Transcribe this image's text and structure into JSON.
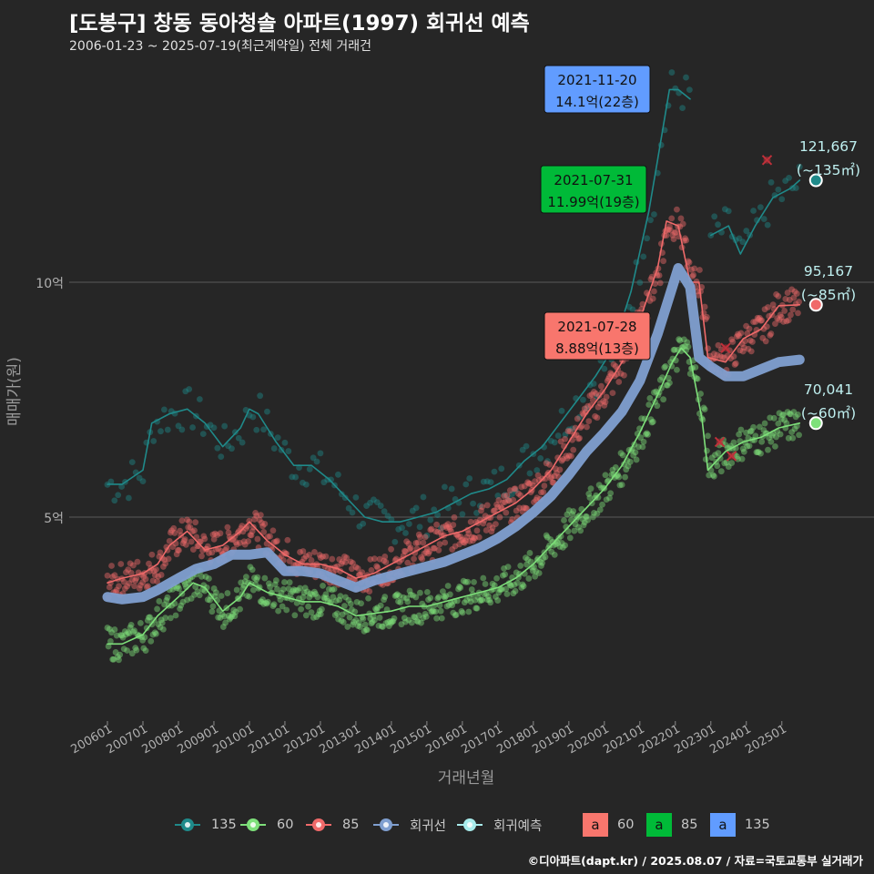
{
  "title": "[도봉구] 창동 동아청솔 아파트(1997) 회귀선 예측",
  "subtitle": "2006-01-23 ~ 2025-07-19(최근계약일) 전체 거래건",
  "caption": "©디아파트(dapt.kr) / 2025.08.07 / 자료=국토교통부 실거래가",
  "colors": {
    "background": "#262626",
    "s135": "#1f8a8a",
    "s60": "#7ee07a",
    "s85": "#f06a6a",
    "regression": "#7f9fd0",
    "forecast": "#a8ecec",
    "label60": "#f8766d",
    "label85": "#00ba38",
    "label135": "#619cff"
  },
  "legend": {
    "items": [
      {
        "label": "135",
        "color": "#1f8a8a"
      },
      {
        "label": "60",
        "color": "#7ee07a"
      },
      {
        "label": "85",
        "color": "#f06a6a"
      },
      {
        "label": "회귀선",
        "color": "#7f9fd0"
      },
      {
        "label": "회귀예측",
        "color": "#a8ecec"
      }
    ],
    "label_items": [
      {
        "glyph": "a",
        "label": "60",
        "color": "#f8766d"
      },
      {
        "glyph": "a",
        "label": "85",
        "color": "#00ba38"
      },
      {
        "glyph": "a",
        "label": "135",
        "color": "#619cff"
      }
    ]
  },
  "chart_data": {
    "type": "line",
    "xlabel": "거래년월",
    "ylabel": "매매가(원)",
    "x_ticks": [
      "200601",
      "200701",
      "200801",
      "200901",
      "201001",
      "201101",
      "201201",
      "201301",
      "201401",
      "201501",
      "201601",
      "201701",
      "201801",
      "201901",
      "202001",
      "202101",
      "202201",
      "202301",
      "202401",
      "202501"
    ],
    "xlim": [
      "2006-01",
      "2025-10"
    ],
    "ylim": [
      1.7,
      14.6
    ],
    "y_ticks": [
      {
        "value": 5,
        "label": "5억"
      },
      {
        "value": 10,
        "label": "10억"
      }
    ],
    "grid": true,
    "legend_position": "bottom",
    "series": [
      {
        "name": "135",
        "color": "#1f8a8a",
        "points": [
          [
            "2006-01",
            5.7
          ],
          [
            "2006-06",
            5.7
          ],
          [
            "2007-01",
            6.0
          ],
          [
            "2007-04",
            7.0
          ],
          [
            "2007-10",
            7.2
          ],
          [
            "2008-04",
            7.3
          ],
          [
            "2008-10",
            7.0
          ],
          [
            "2009-04",
            6.5
          ],
          [
            "2009-10",
            6.9
          ],
          [
            "2010-01",
            7.3
          ],
          [
            "2010-04",
            7.2
          ],
          [
            "2010-10",
            6.6
          ],
          [
            "2011-04",
            6.1
          ],
          [
            "2011-10",
            6.1
          ],
          [
            "2012-04",
            5.8
          ],
          [
            "2012-10",
            5.4
          ],
          [
            "2013-04",
            5.0
          ],
          [
            "2013-10",
            4.9
          ],
          [
            "2014-04",
            4.9
          ],
          [
            "2014-10",
            5.0
          ],
          [
            "2015-04",
            5.1
          ],
          [
            "2015-10",
            5.3
          ],
          [
            "2016-04",
            5.5
          ],
          [
            "2016-10",
            5.6
          ],
          [
            "2017-04",
            5.8
          ],
          [
            "2017-10",
            6.2
          ],
          [
            "2018-04",
            6.5
          ],
          [
            "2018-10",
            7.0
          ],
          [
            "2019-04",
            7.5
          ],
          [
            "2019-10",
            8.0
          ],
          [
            "2020-04",
            8.6
          ],
          [
            "2020-10",
            9.8
          ],
          [
            "2021-04",
            11.5
          ],
          [
            "2021-07",
            12.6
          ],
          [
            "2021-11",
            14.1
          ],
          [
            "2022-02",
            14.1
          ],
          [
            "2022-06",
            13.9
          ]
        ]
      },
      {
        "name": "135-recent",
        "color": "#1f8a8a",
        "points": [
          [
            "2023-01",
            11.0
          ],
          [
            "2023-07",
            11.2
          ],
          [
            "2023-11",
            10.6
          ],
          [
            "2024-04",
            11.2
          ],
          [
            "2024-10",
            11.8
          ],
          [
            "2025-04",
            12.0
          ],
          [
            "2025-07",
            12.17
          ]
        ]
      },
      {
        "name": "85",
        "color": "#f06a6a",
        "points": [
          [
            "2006-01",
            3.6
          ],
          [
            "2006-06",
            3.7
          ],
          [
            "2007-01",
            3.8
          ],
          [
            "2007-06",
            4.0
          ],
          [
            "2007-10",
            4.4
          ],
          [
            "2008-04",
            4.7
          ],
          [
            "2008-10",
            4.3
          ],
          [
            "2009-04",
            4.4
          ],
          [
            "2009-10",
            4.7
          ],
          [
            "2010-01",
            4.9
          ],
          [
            "2010-07",
            4.5
          ],
          [
            "2011-01",
            4.2
          ],
          [
            "2011-07",
            4.0
          ],
          [
            "2012-01",
            4.0
          ],
          [
            "2012-07",
            3.9
          ],
          [
            "2013-01",
            3.7
          ],
          [
            "2013-07",
            3.8
          ],
          [
            "2014-01",
            4.0
          ],
          [
            "2014-07",
            4.2
          ],
          [
            "2015-01",
            4.4
          ],
          [
            "2015-07",
            4.6
          ],
          [
            "2016-01",
            4.7
          ],
          [
            "2016-07",
            4.9
          ],
          [
            "2017-01",
            5.1
          ],
          [
            "2017-07",
            5.3
          ],
          [
            "2018-01",
            5.6
          ],
          [
            "2018-07",
            6.0
          ],
          [
            "2019-01",
            6.6
          ],
          [
            "2019-07",
            7.2
          ],
          [
            "2020-01",
            7.7
          ],
          [
            "2020-07",
            8.3
          ],
          [
            "2021-01",
            9.2
          ],
          [
            "2021-07",
            10.3
          ],
          [
            "2021-10",
            11.3
          ],
          [
            "2022-02",
            11.2
          ],
          [
            "2022-06",
            10.0
          ],
          [
            "2022-09",
            10.0
          ],
          [
            "2022-12",
            8.4
          ],
          [
            "2023-06",
            8.3
          ],
          [
            "2023-12",
            8.8
          ],
          [
            "2024-06",
            9.0
          ],
          [
            "2024-12",
            9.5
          ],
          [
            "2025-07",
            9.52
          ]
        ]
      },
      {
        "name": "60",
        "color": "#7ee07a",
        "points": [
          [
            "2006-01",
            2.3
          ],
          [
            "2006-06",
            2.3
          ],
          [
            "2007-01",
            2.5
          ],
          [
            "2007-06",
            2.9
          ],
          [
            "2008-01",
            3.3
          ],
          [
            "2008-06",
            3.6
          ],
          [
            "2008-10",
            3.5
          ],
          [
            "2009-04",
            3.0
          ],
          [
            "2009-10",
            3.3
          ],
          [
            "2010-01",
            3.6
          ],
          [
            "2010-07",
            3.4
          ],
          [
            "2011-01",
            3.3
          ],
          [
            "2011-07",
            3.2
          ],
          [
            "2012-01",
            3.2
          ],
          [
            "2012-07",
            3.1
          ],
          [
            "2013-01",
            2.9
          ],
          [
            "2013-07",
            2.95
          ],
          [
            "2014-01",
            3.0
          ],
          [
            "2014-07",
            3.1
          ],
          [
            "2015-01",
            3.1
          ],
          [
            "2015-07",
            3.2
          ],
          [
            "2016-01",
            3.3
          ],
          [
            "2016-07",
            3.4
          ],
          [
            "2017-01",
            3.5
          ],
          [
            "2017-07",
            3.7
          ],
          [
            "2018-01",
            4.0
          ],
          [
            "2018-07",
            4.4
          ],
          [
            "2019-01",
            4.8
          ],
          [
            "2019-07",
            5.2
          ],
          [
            "2020-01",
            5.6
          ],
          [
            "2020-07",
            6.1
          ],
          [
            "2021-01",
            6.8
          ],
          [
            "2021-07",
            7.6
          ],
          [
            "2021-12",
            8.3
          ],
          [
            "2022-03",
            8.6
          ],
          [
            "2022-06",
            8.4
          ],
          [
            "2022-10",
            7.1
          ],
          [
            "2022-12",
            6.0
          ],
          [
            "2023-06",
            6.4
          ],
          [
            "2023-12",
            6.6
          ],
          [
            "2024-06",
            6.7
          ],
          [
            "2024-12",
            6.9
          ],
          [
            "2025-07",
            7.0
          ]
        ]
      },
      {
        "name": "회귀선",
        "color": "#7f9fd0",
        "points": [
          [
            "2006-01",
            3.3
          ],
          [
            "2006-06",
            3.25
          ],
          [
            "2007-01",
            3.3
          ],
          [
            "2007-06",
            3.45
          ],
          [
            "2008-01",
            3.7
          ],
          [
            "2008-07",
            3.9
          ],
          [
            "2009-01",
            4.0
          ],
          [
            "2009-07",
            4.2
          ],
          [
            "2010-01",
            4.2
          ],
          [
            "2010-07",
            4.25
          ],
          [
            "2011-01",
            3.85
          ],
          [
            "2011-07",
            3.85
          ],
          [
            "2012-01",
            3.8
          ],
          [
            "2012-07",
            3.65
          ],
          [
            "2013-01",
            3.5
          ],
          [
            "2013-07",
            3.65
          ],
          [
            "2014-01",
            3.75
          ],
          [
            "2014-07",
            3.85
          ],
          [
            "2015-01",
            3.95
          ],
          [
            "2015-07",
            4.05
          ],
          [
            "2016-01",
            4.2
          ],
          [
            "2016-07",
            4.35
          ],
          [
            "2017-01",
            4.55
          ],
          [
            "2017-07",
            4.8
          ],
          [
            "2018-01",
            5.1
          ],
          [
            "2018-07",
            5.45
          ],
          [
            "2019-01",
            5.9
          ],
          [
            "2019-07",
            6.4
          ],
          [
            "2020-01",
            6.8
          ],
          [
            "2020-07",
            7.25
          ],
          [
            "2021-01",
            7.9
          ],
          [
            "2021-07",
            8.9
          ],
          [
            "2021-11",
            9.7
          ],
          [
            "2022-02",
            10.3
          ],
          [
            "2022-06",
            9.9
          ],
          [
            "2022-09",
            8.4
          ],
          [
            "2023-01",
            8.2
          ],
          [
            "2023-06",
            8.0
          ],
          [
            "2023-12",
            8.0
          ],
          [
            "2024-06",
            8.15
          ],
          [
            "2024-12",
            8.3
          ],
          [
            "2025-07",
            8.35
          ]
        ]
      }
    ],
    "forecast_points": [
      {
        "series": "135",
        "x": "2025-07",
        "y": 12.17,
        "label": "121,667",
        "area": "(~135㎡)"
      },
      {
        "series": "85",
        "x": "2025-07",
        "y": 9.52,
        "label": "95,167",
        "area": "(~85㎡)"
      },
      {
        "series": "60",
        "x": "2025-07",
        "y": 7.0,
        "label": "70,041",
        "area": "(~60㎡)"
      }
    ],
    "outliers": [
      {
        "x": "2024-08",
        "y": 12.6
      },
      {
        "x": "2023-06",
        "y": 8.6
      },
      {
        "x": "2023-04",
        "y": 6.6
      },
      {
        "x": "2023-08",
        "y": 6.3
      }
    ],
    "annotations": [
      {
        "date": "2021-11-20",
        "price": "14.1억(22층)",
        "color": "#619cff",
        "x": "2021-11",
        "y": 14.1
      },
      {
        "date": "2021-07-31",
        "price": "11.99억(19층)",
        "color": "#00ba38",
        "x": "2021-07",
        "y": 11.99
      },
      {
        "date": "2021-07-28",
        "price": "8.88억(13층)",
        "color": "#f8766d",
        "x": "2021-07",
        "y": 8.88
      }
    ]
  }
}
